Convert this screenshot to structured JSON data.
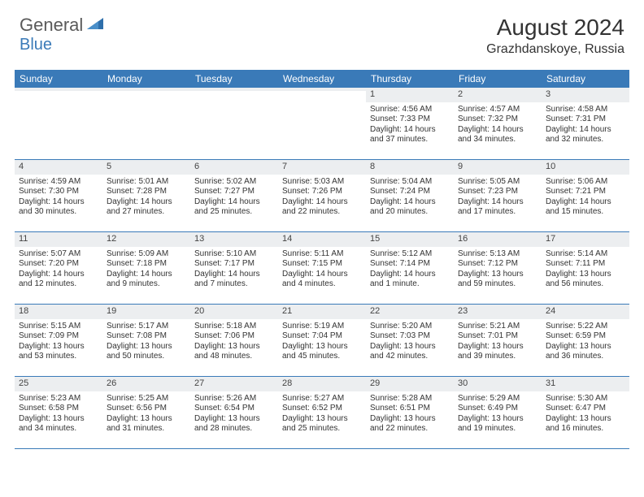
{
  "logo": {
    "general": "General",
    "blue": "Blue"
  },
  "title": "August 2024",
  "location": "Grazhdanskoye, Russia",
  "colors": {
    "header_bar": "#3a7ab8",
    "daynum_bg": "#eceef0",
    "text": "#333333",
    "logo_gray": "#5a5a5a",
    "logo_blue": "#3a7ab8",
    "border": "#3a7ab8"
  },
  "weekdays": [
    "Sunday",
    "Monday",
    "Tuesday",
    "Wednesday",
    "Thursday",
    "Friday",
    "Saturday"
  ],
  "weeks": [
    [
      {
        "n": "",
        "lines": []
      },
      {
        "n": "",
        "lines": []
      },
      {
        "n": "",
        "lines": []
      },
      {
        "n": "",
        "lines": []
      },
      {
        "n": "1",
        "lines": [
          "Sunrise: 4:56 AM",
          "Sunset: 7:33 PM",
          "Daylight: 14 hours",
          "and 37 minutes."
        ]
      },
      {
        "n": "2",
        "lines": [
          "Sunrise: 4:57 AM",
          "Sunset: 7:32 PM",
          "Daylight: 14 hours",
          "and 34 minutes."
        ]
      },
      {
        "n": "3",
        "lines": [
          "Sunrise: 4:58 AM",
          "Sunset: 7:31 PM",
          "Daylight: 14 hours",
          "and 32 minutes."
        ]
      }
    ],
    [
      {
        "n": "4",
        "lines": [
          "Sunrise: 4:59 AM",
          "Sunset: 7:30 PM",
          "Daylight: 14 hours",
          "and 30 minutes."
        ]
      },
      {
        "n": "5",
        "lines": [
          "Sunrise: 5:01 AM",
          "Sunset: 7:28 PM",
          "Daylight: 14 hours",
          "and 27 minutes."
        ]
      },
      {
        "n": "6",
        "lines": [
          "Sunrise: 5:02 AM",
          "Sunset: 7:27 PM",
          "Daylight: 14 hours",
          "and 25 minutes."
        ]
      },
      {
        "n": "7",
        "lines": [
          "Sunrise: 5:03 AM",
          "Sunset: 7:26 PM",
          "Daylight: 14 hours",
          "and 22 minutes."
        ]
      },
      {
        "n": "8",
        "lines": [
          "Sunrise: 5:04 AM",
          "Sunset: 7:24 PM",
          "Daylight: 14 hours",
          "and 20 minutes."
        ]
      },
      {
        "n": "9",
        "lines": [
          "Sunrise: 5:05 AM",
          "Sunset: 7:23 PM",
          "Daylight: 14 hours",
          "and 17 minutes."
        ]
      },
      {
        "n": "10",
        "lines": [
          "Sunrise: 5:06 AM",
          "Sunset: 7:21 PM",
          "Daylight: 14 hours",
          "and 15 minutes."
        ]
      }
    ],
    [
      {
        "n": "11",
        "lines": [
          "Sunrise: 5:07 AM",
          "Sunset: 7:20 PM",
          "Daylight: 14 hours",
          "and 12 minutes."
        ]
      },
      {
        "n": "12",
        "lines": [
          "Sunrise: 5:09 AM",
          "Sunset: 7:18 PM",
          "Daylight: 14 hours",
          "and 9 minutes."
        ]
      },
      {
        "n": "13",
        "lines": [
          "Sunrise: 5:10 AM",
          "Sunset: 7:17 PM",
          "Daylight: 14 hours",
          "and 7 minutes."
        ]
      },
      {
        "n": "14",
        "lines": [
          "Sunrise: 5:11 AM",
          "Sunset: 7:15 PM",
          "Daylight: 14 hours",
          "and 4 minutes."
        ]
      },
      {
        "n": "15",
        "lines": [
          "Sunrise: 5:12 AM",
          "Sunset: 7:14 PM",
          "Daylight: 14 hours",
          "and 1 minute."
        ]
      },
      {
        "n": "16",
        "lines": [
          "Sunrise: 5:13 AM",
          "Sunset: 7:12 PM",
          "Daylight: 13 hours",
          "and 59 minutes."
        ]
      },
      {
        "n": "17",
        "lines": [
          "Sunrise: 5:14 AM",
          "Sunset: 7:11 PM",
          "Daylight: 13 hours",
          "and 56 minutes."
        ]
      }
    ],
    [
      {
        "n": "18",
        "lines": [
          "Sunrise: 5:15 AM",
          "Sunset: 7:09 PM",
          "Daylight: 13 hours",
          "and 53 minutes."
        ]
      },
      {
        "n": "19",
        "lines": [
          "Sunrise: 5:17 AM",
          "Sunset: 7:08 PM",
          "Daylight: 13 hours",
          "and 50 minutes."
        ]
      },
      {
        "n": "20",
        "lines": [
          "Sunrise: 5:18 AM",
          "Sunset: 7:06 PM",
          "Daylight: 13 hours",
          "and 48 minutes."
        ]
      },
      {
        "n": "21",
        "lines": [
          "Sunrise: 5:19 AM",
          "Sunset: 7:04 PM",
          "Daylight: 13 hours",
          "and 45 minutes."
        ]
      },
      {
        "n": "22",
        "lines": [
          "Sunrise: 5:20 AM",
          "Sunset: 7:03 PM",
          "Daylight: 13 hours",
          "and 42 minutes."
        ]
      },
      {
        "n": "23",
        "lines": [
          "Sunrise: 5:21 AM",
          "Sunset: 7:01 PM",
          "Daylight: 13 hours",
          "and 39 minutes."
        ]
      },
      {
        "n": "24",
        "lines": [
          "Sunrise: 5:22 AM",
          "Sunset: 6:59 PM",
          "Daylight: 13 hours",
          "and 36 minutes."
        ]
      }
    ],
    [
      {
        "n": "25",
        "lines": [
          "Sunrise: 5:23 AM",
          "Sunset: 6:58 PM",
          "Daylight: 13 hours",
          "and 34 minutes."
        ]
      },
      {
        "n": "26",
        "lines": [
          "Sunrise: 5:25 AM",
          "Sunset: 6:56 PM",
          "Daylight: 13 hours",
          "and 31 minutes."
        ]
      },
      {
        "n": "27",
        "lines": [
          "Sunrise: 5:26 AM",
          "Sunset: 6:54 PM",
          "Daylight: 13 hours",
          "and 28 minutes."
        ]
      },
      {
        "n": "28",
        "lines": [
          "Sunrise: 5:27 AM",
          "Sunset: 6:52 PM",
          "Daylight: 13 hours",
          "and 25 minutes."
        ]
      },
      {
        "n": "29",
        "lines": [
          "Sunrise: 5:28 AM",
          "Sunset: 6:51 PM",
          "Daylight: 13 hours",
          "and 22 minutes."
        ]
      },
      {
        "n": "30",
        "lines": [
          "Sunrise: 5:29 AM",
          "Sunset: 6:49 PM",
          "Daylight: 13 hours",
          "and 19 minutes."
        ]
      },
      {
        "n": "31",
        "lines": [
          "Sunrise: 5:30 AM",
          "Sunset: 6:47 PM",
          "Daylight: 13 hours",
          "and 16 minutes."
        ]
      }
    ]
  ]
}
